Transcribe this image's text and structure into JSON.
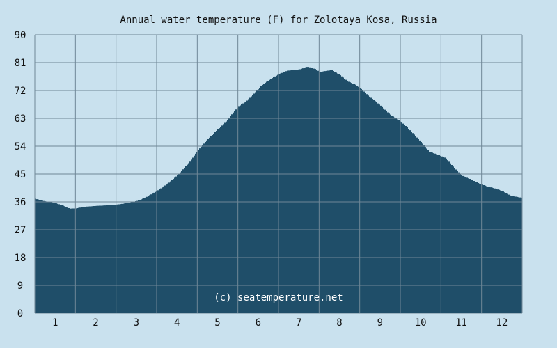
{
  "chart_data": {
    "type": "area",
    "title": "Annual water temperature (F) for Zolotaya Kosa, Russia",
    "xlabel": "",
    "ylabel": "",
    "watermark": "(c) seatemperature.net",
    "x_ticks": [
      "1",
      "2",
      "3",
      "4",
      "5",
      "6",
      "7",
      "8",
      "9",
      "10",
      "11",
      "12"
    ],
    "y_ticks": [
      "0",
      "9",
      "18",
      "27",
      "36",
      "45",
      "54",
      "63",
      "72",
      "81",
      "90"
    ],
    "ylim": [
      0,
      90
    ],
    "xlim": [
      0.5,
      12.5
    ],
    "grid": true,
    "series": [
      {
        "x": [
          0.5,
          0.7,
          1.0,
          1.2,
          1.35,
          1.5,
          1.7,
          2.0,
          2.3,
          2.55,
          2.75,
          3.0,
          3.2,
          3.5,
          3.8,
          4.0,
          4.3,
          4.5,
          4.7,
          5.0,
          5.2,
          5.4,
          5.55,
          5.7,
          5.9,
          6.1,
          6.3,
          6.5,
          6.7,
          7.0,
          7.2,
          7.4,
          7.5,
          7.65,
          7.8,
          8.0,
          8.2,
          8.4,
          8.55,
          8.7,
          9.0,
          9.2,
          9.4,
          9.6,
          9.8,
          10.0,
          10.2,
          10.4,
          10.6,
          10.8,
          11.0,
          11.2,
          11.4,
          11.6,
          11.8,
          12.0,
          12.2,
          12.4,
          12.5
        ],
        "values": [
          37.0,
          36.3,
          35.6,
          34.7,
          33.8,
          33.9,
          34.4,
          34.7,
          34.9,
          35.2,
          35.6,
          36.3,
          37.3,
          39.6,
          42.3,
          44.6,
          48.9,
          52.6,
          55.6,
          59.5,
          62.0,
          65.4,
          67.3,
          68.6,
          71.2,
          74.0,
          75.8,
          77.3,
          78.4,
          78.8,
          79.7,
          78.9,
          78.0,
          78.3,
          78.6,
          77.0,
          74.9,
          73.8,
          72.2,
          70.3,
          67.1,
          64.6,
          62.8,
          60.8,
          58.1,
          55.3,
          52.2,
          51.3,
          50.2,
          47.2,
          44.5,
          43.4,
          42.1,
          41.1,
          40.4,
          39.5,
          38.0,
          37.5,
          37.3
        ]
      }
    ],
    "colors": {
      "background": "#c9e1ee",
      "area_fill": "#1f4e69",
      "grid": "#6f8797",
      "text": "#111111",
      "watermark": "#ffffff"
    }
  }
}
